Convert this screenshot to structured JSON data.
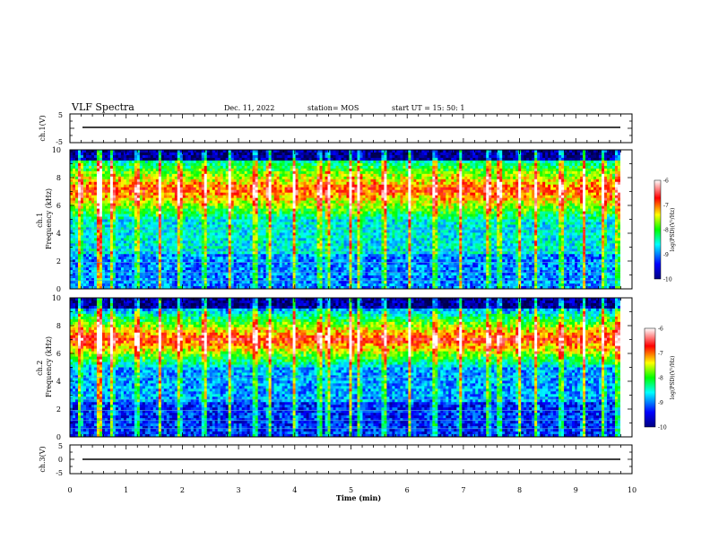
{
  "header": {
    "title": "VLF Spectra",
    "date": "Dec. 11, 2022",
    "station": "station= MOS",
    "start": "start  UT =   15: 50: 1"
  },
  "chart_data": [
    {
      "type": "line",
      "panel": "ch1-voltage",
      "ylabel": "ch.1(V)",
      "ylim": [
        -5,
        5
      ],
      "yticks": [
        "5",
        "-5"
      ],
      "xlim": [
        0,
        10
      ],
      "series": [
        {
          "values_x": [
            0.0,
            10.0
          ],
          "values_y": [
            0.3,
            0.3
          ]
        }
      ]
    },
    {
      "type": "heatmap",
      "panel": "ch1-spectrogram",
      "ylabel": "ch.1\nFrequency (kHz)",
      "ylim": [
        0,
        10
      ],
      "yticks": [
        "0",
        "2",
        "4",
        "6",
        "8",
        "10"
      ],
      "xlim": [
        0,
        9.8
      ],
      "colorbar": {
        "label": "log(PSD)(V²/Hz)",
        "range": [
          -10,
          -6
        ],
        "ticks": [
          "-6",
          "-7",
          "-8",
          "-9",
          "-10"
        ]
      },
      "background_level": -8.6,
      "band_kHz": [
        5.0,
        9.2
      ],
      "sferic_times_min": [
        0.18,
        0.5,
        0.55,
        0.75,
        1.2,
        1.6,
        1.95,
        2.4,
        2.85,
        3.3,
        3.55,
        4.0,
        4.45,
        4.6,
        5.0,
        5.15,
        5.6,
        6.05,
        6.5,
        6.95,
        7.45,
        7.65,
        8.0,
        8.3,
        8.75,
        9.15,
        9.5,
        9.75
      ]
    },
    {
      "type": "heatmap",
      "panel": "ch2-spectrogram",
      "ylabel": "ch.2\nFrequency (kHz)",
      "ylim": [
        0,
        10
      ],
      "yticks": [
        "0",
        "2",
        "4",
        "6",
        "8",
        "10"
      ],
      "xlim": [
        0,
        9.8
      ],
      "colorbar": {
        "label": "log(PSD)(V²/Hz)",
        "range": [
          -10,
          -6
        ],
        "ticks": [
          "-6",
          "-7",
          "-8",
          "-9",
          "-10"
        ]
      },
      "background_level": -8.9,
      "band_kHz": [
        5.0,
        9.0
      ],
      "sferic_times_min": [
        0.18,
        0.5,
        0.55,
        0.75,
        1.2,
        1.6,
        1.95,
        2.4,
        2.85,
        3.3,
        3.55,
        4.0,
        4.45,
        4.6,
        5.0,
        5.15,
        5.6,
        6.05,
        6.5,
        6.95,
        7.45,
        7.65,
        8.0,
        8.3,
        8.75,
        9.15,
        9.5,
        9.75
      ]
    },
    {
      "type": "line",
      "panel": "ch3-voltage",
      "ylabel": "ch.3(V)",
      "ylim": [
        -5,
        5
      ],
      "yticks": [
        "5",
        "0",
        "-5"
      ],
      "xlim": [
        0,
        10
      ],
      "xlabel": "Time (min)",
      "xticks": [
        "0",
        "1",
        "2",
        "3",
        "4",
        "5",
        "6",
        "7",
        "8",
        "9",
        "10"
      ],
      "series": [
        {
          "values_x": [
            0.0,
            10.0
          ],
          "values_y": [
            0.0,
            0.0
          ]
        }
      ]
    }
  ],
  "colors": {
    "axis": "#000000",
    "background": "#ffffff"
  }
}
